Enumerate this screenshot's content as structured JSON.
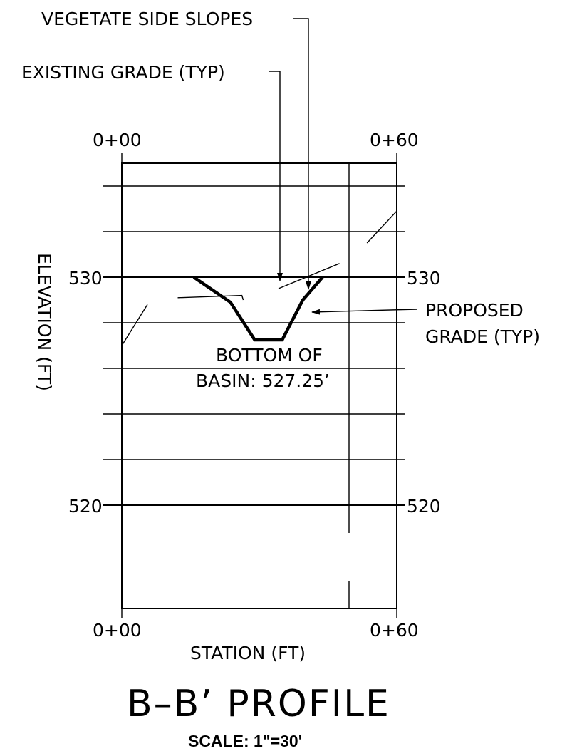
{
  "title": "B–B’ PROFILE",
  "scale_text": "SCALE: 1\"=30'",
  "axes": {
    "x_label": "STATION (FT)",
    "y_label": "ELEVATION (FT)",
    "x_ticks_top": [
      "0+00",
      "0+60"
    ],
    "x_ticks_bottom": [
      "0+00",
      "0+60"
    ],
    "y_ticks_left": [
      "530",
      "520"
    ],
    "y_ticks_right": [
      "530",
      "520"
    ]
  },
  "callouts": {
    "vegetate": "VEGETATE SIDE SLOPES",
    "existing": "EXISTING GRADE (TYP)",
    "proposed_line1": "PROPOSED",
    "proposed_line2": "GRADE (TYP)",
    "bottom_line1": "BOTTOM OF",
    "bottom_line2": "BASIN: 527.25’"
  },
  "chart_data": {
    "type": "line",
    "xlabel": "STATION (FT)",
    "ylabel": "ELEVATION (FT)",
    "xlim": [
      0,
      60
    ],
    "ylim": [
      514,
      531.5
    ],
    "grid": true,
    "series": [
      {
        "name": "PROPOSED GRADE (TYP)",
        "points": [
          [
            15.7,
            530.0
          ],
          [
            23.7,
            528.9
          ],
          [
            29.0,
            527.25
          ],
          [
            35.0,
            527.25
          ],
          [
            39.5,
            529.0
          ],
          [
            43.8,
            530.0
          ]
        ]
      },
      {
        "name": "EXISTING GRADE (TYP)",
        "segments": [
          [
            [
              0,
              527.0
            ],
            [
              5.6,
              528.8
            ]
          ],
          [
            [
              12.2,
              529.1
            ],
            [
              26.2,
              529.2
            ],
            [
              26.5,
              529.0
            ]
          ],
          [
            [
              34.2,
              529.5
            ],
            [
              47.5,
              530.6
            ]
          ],
          [
            [
              53.5,
              531.5
            ],
            [
              60,
              532.9
            ]
          ]
        ]
      }
    ]
  }
}
